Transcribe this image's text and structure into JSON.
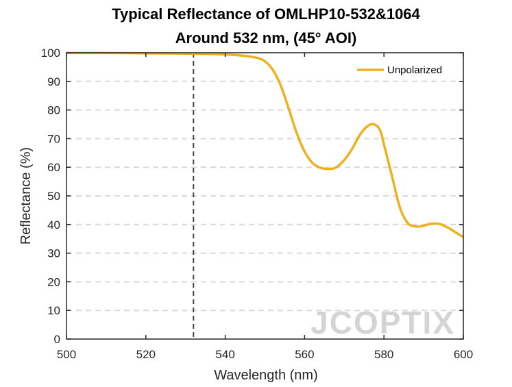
{
  "chart_data": {
    "type": "line",
    "title_line1": "Typical Reflectance of OMLHP10-532&1064",
    "title_line2": "Around 532 nm, (45° AOI)",
    "xlabel": "Wavelength (nm)",
    "ylabel": "Reflectance (%)",
    "xlim": [
      500,
      600
    ],
    "ylim": [
      0,
      100
    ],
    "xticks": [
      500,
      520,
      540,
      560,
      580,
      600
    ],
    "yticks": [
      0,
      10,
      20,
      30,
      40,
      50,
      60,
      70,
      80,
      90,
      100
    ],
    "grid": "horizontal dashed",
    "legend_position": "top-right",
    "reference_line": {
      "x": 532,
      "style": "dashed"
    },
    "series": [
      {
        "name": "Unpolarized",
        "color": "#EDB120",
        "x": [
          500,
          510,
          520,
          530,
          535,
          540,
          545,
          548,
          550,
          552,
          554,
          556,
          558,
          560,
          562,
          564,
          566,
          567,
          568,
          570,
          572,
          574,
          576,
          577.5,
          579,
          580,
          582,
          584,
          586,
          588,
          590,
          592,
          594,
          596,
          598,
          600
        ],
        "y": [
          99.9,
          99.9,
          99.8,
          99.7,
          99.6,
          99.4,
          98.9,
          98.2,
          97.0,
          94.0,
          88.5,
          80.5,
          72.0,
          65.5,
          61.5,
          59.8,
          59.4,
          59.5,
          60.0,
          62.5,
          66.5,
          71.5,
          74.5,
          75.0,
          73.0,
          68.0,
          57.0,
          46.0,
          40.5,
          39.3,
          39.6,
          40.3,
          40.2,
          39.0,
          37.3,
          35.6
        ]
      }
    ],
    "watermark": "JCOPTIX"
  }
}
